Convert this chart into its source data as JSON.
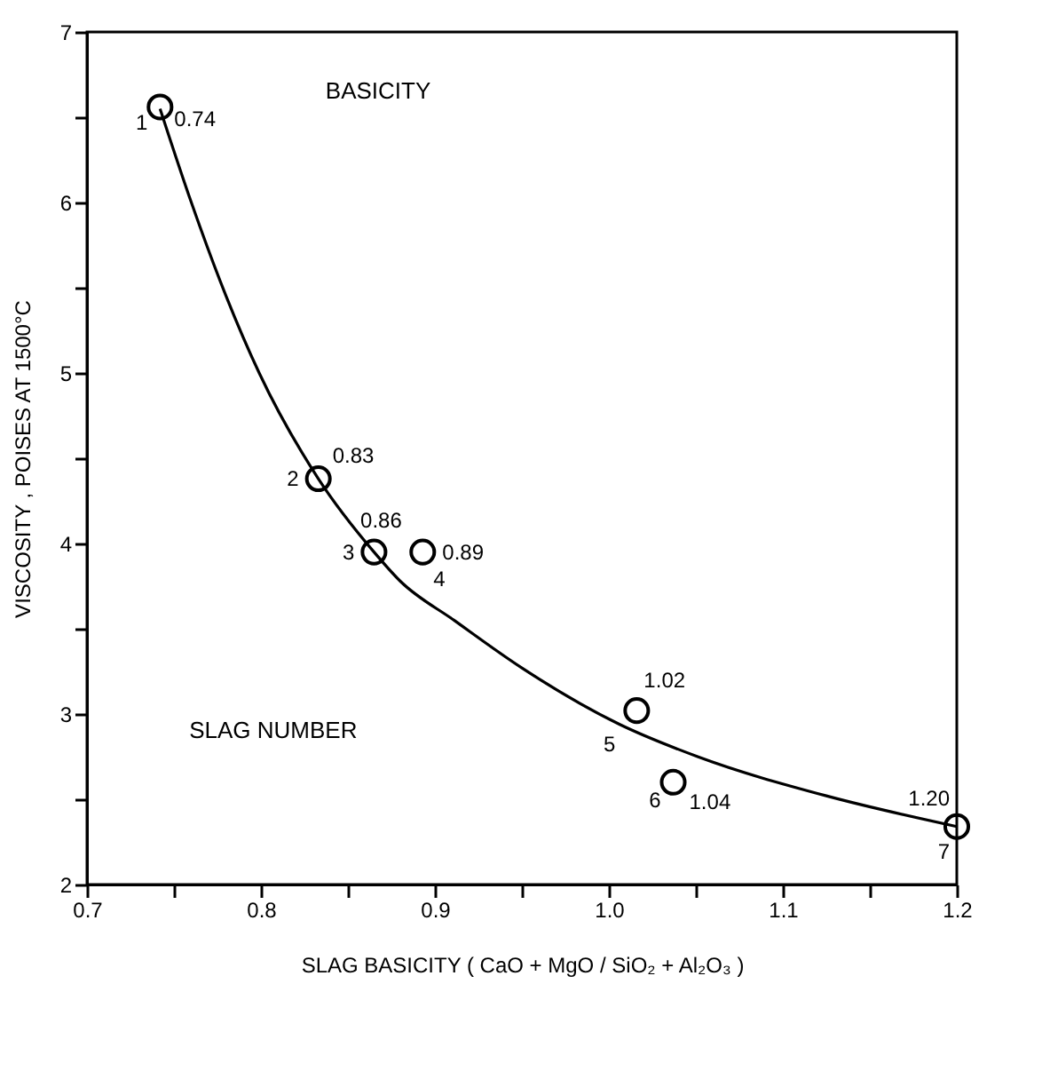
{
  "chart_data": {
    "type": "scatter",
    "xlabel": "SLAG BASICITY  ( CaO + MgO / SiO₂ + Al₂O₃ )",
    "ylabel": "VISCOSITY , POISES AT 1500°C",
    "xlim": [
      0.7,
      1.2
    ],
    "xticks": [
      0.7,
      {
        "value": 0.75,
        "label": null
      },
      0.8,
      {
        "value": 0.85,
        "label": null
      },
      0.9,
      {
        "value": 0.95,
        "label": null
      },
      {
        "value": 1.0,
        "label": "1.0"
      },
      {
        "value": 1.05,
        "label": null
      },
      1.1,
      {
        "value": 1.15,
        "label": null
      },
      1.2
    ],
    "ylim": [
      2,
      7
    ],
    "yticks": [
      2,
      {
        "value": 2.5,
        "label": null
      },
      3,
      {
        "value": 3.5,
        "label": null
      },
      4,
      {
        "value": 4.5,
        "label": null
      },
      5,
      {
        "value": 5.5,
        "label": null
      },
      6,
      {
        "value": 6.5,
        "label": null
      },
      7
    ],
    "grid": false,
    "series": [
      {
        "type": "line",
        "color": "#000000",
        "marker": "none",
        "line_style": "solid",
        "x": [
          0.742,
          0.76,
          0.78,
          0.799,
          0.833,
          0.865,
          0.88,
          0.911,
          0.95,
          1.006,
          1.051,
          1.125,
          1.2
        ],
        "values": [
          6.55,
          6.0,
          5.45,
          5.0,
          4.38,
          3.95,
          3.78,
          3.55,
          3.27,
          2.94,
          2.75,
          2.52,
          2.34
        ]
      },
      {
        "color": "#000000",
        "marker": "circle",
        "x": [
          0.742,
          0.833,
          0.865,
          0.893,
          1.016,
          1.037,
          1.2
        ],
        "values": [
          6.56,
          4.38,
          3.95,
          3.95,
          3.02,
          2.6,
          2.34
        ]
      }
    ],
    "annotations": [
      "BASICITY",
      "SLAG NUMBER",
      {
        "text": "1",
        "x": 0.742,
        "y": 6.56
      },
      {
        "text": "0.74",
        "x": 0.742,
        "y": 6.56
      },
      {
        "text": "2",
        "x": 0.833,
        "y": 4.38
      },
      {
        "text": "0.83",
        "x": 0.833,
        "y": 4.38
      },
      {
        "text": "3",
        "x": 0.865,
        "y": 3.95
      },
      {
        "text": "0.86",
        "x": 0.865,
        "y": 3.95
      },
      {
        "text": "4",
        "x": 0.893,
        "y": 3.95
      },
      {
        "text": "0.89",
        "x": 0.893,
        "y": 3.95
      },
      {
        "text": "5",
        "x": 1.016,
        "y": 3.02
      },
      {
        "text": "1.02",
        "x": 1.016,
        "y": 3.02
      },
      {
        "text": "6",
        "x": 1.037,
        "y": 2.6
      },
      {
        "text": "1.04",
        "x": 1.037,
        "y": 2.6
      },
      {
        "text": "7",
        "x": 1.2,
        "y": 2.34
      },
      {
        "text": "1.20",
        "x": 1.2,
        "y": 2.34
      }
    ]
  }
}
